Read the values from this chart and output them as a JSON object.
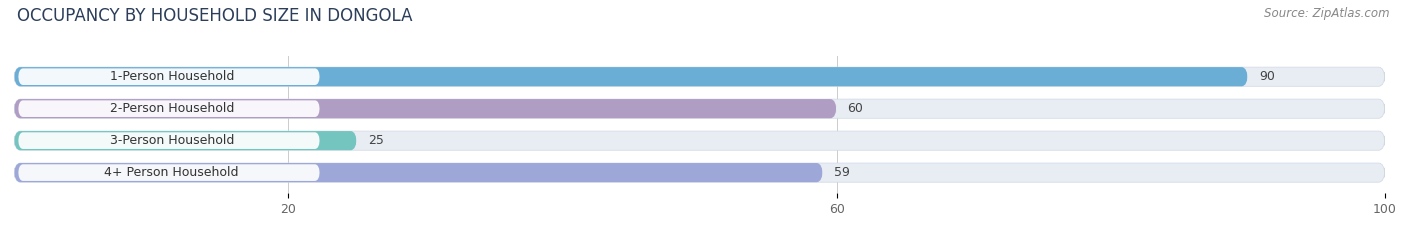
{
  "title": "OCCUPANCY BY HOUSEHOLD SIZE IN DONGOLA",
  "source": "Source: ZipAtlas.com",
  "categories": [
    "1-Person Household",
    "2-Person Household",
    "3-Person Household",
    "4+ Person Household"
  ],
  "values": [
    90,
    60,
    25,
    59
  ],
  "bar_colors": [
    "#6aaed6",
    "#b09dc4",
    "#74c5c0",
    "#9da8d8"
  ],
  "background_color": "#ffffff",
  "bar_bg_color": "#e8edf4",
  "xlim": [
    0,
    100
  ],
  "xticks": [
    20,
    60,
    100
  ],
  "title_fontsize": 12,
  "label_fontsize": 9,
  "value_fontsize": 9,
  "source_fontsize": 8.5
}
